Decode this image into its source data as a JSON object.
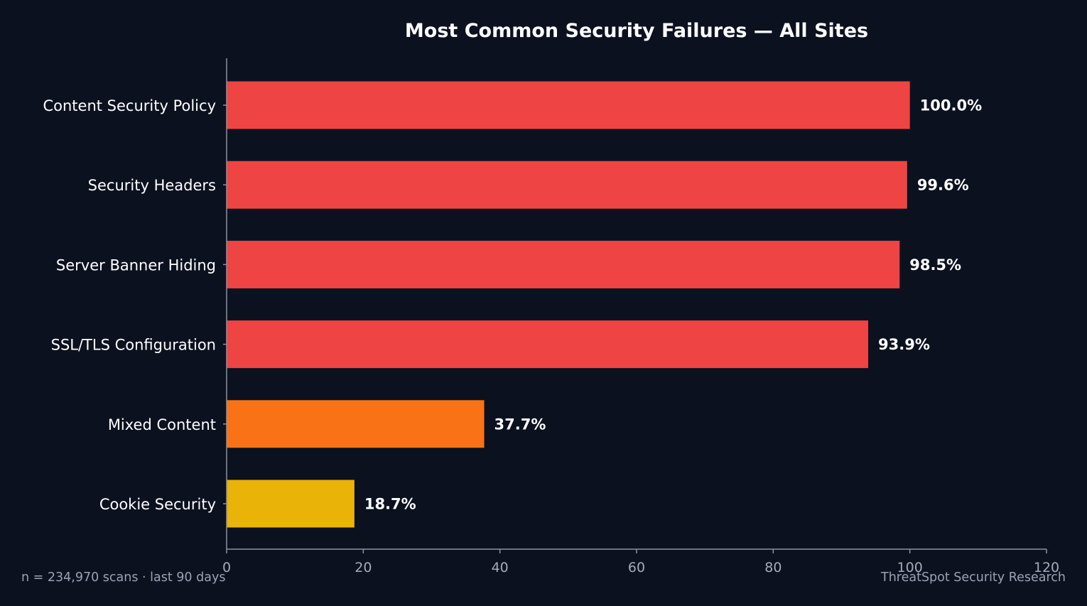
{
  "chart_data": {
    "type": "bar",
    "orientation": "horizontal",
    "title": "Most Common Security Failures — All Sites",
    "xlabel": "",
    "ylabel": "",
    "xlim": [
      0,
      120
    ],
    "x_ticks": [
      0,
      20,
      40,
      60,
      80,
      100,
      120
    ],
    "categories": [
      "Content Security Policy",
      "Security Headers",
      "Server Banner Hiding",
      "SSL/TLS Configuration",
      "Mixed Content",
      "Cookie Security"
    ],
    "values": [
      100.0,
      99.6,
      98.5,
      93.9,
      37.7,
      18.7
    ],
    "value_labels": [
      "100.0%",
      "99.6%",
      "98.5%",
      "93.9%",
      "37.7%",
      "18.7%"
    ],
    "bar_colors": [
      "#ef4444",
      "#ef4444",
      "#ef4444",
      "#ef4444",
      "#f97316",
      "#eab308"
    ],
    "grid": false,
    "legend": "none"
  },
  "footer": {
    "left": "n = 234,970 scans · last 90 days",
    "right": "ThreatSpot Security Research"
  },
  "colors": {
    "background": "#0c1120",
    "critical": "#ef4444",
    "high": "#f97316",
    "medium": "#eab308"
  }
}
